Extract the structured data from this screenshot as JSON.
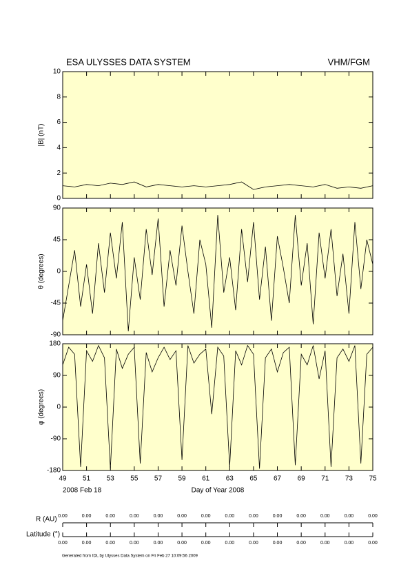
{
  "header": {
    "title": "ESA ULYSSES DATA SYSTEM",
    "instrument": "VHM/FGM"
  },
  "chart_data": [
    {
      "type": "line",
      "ylabel": "|B| (nT)",
      "color": "#000000",
      "background": "#ffffcc",
      "x": [
        49,
        50,
        51,
        52,
        53,
        54,
        55,
        56,
        57,
        58,
        59,
        60,
        61,
        62,
        63,
        64,
        65,
        66,
        67,
        68,
        69,
        70,
        71,
        72,
        73,
        74,
        75
      ],
      "values": [
        1.0,
        0.9,
        1.1,
        1.0,
        1.2,
        1.1,
        1.3,
        0.9,
        1.1,
        1.0,
        0.9,
        1.0,
        0.9,
        1.0,
        1.1,
        1.3,
        0.7,
        0.9,
        1.0,
        1.1,
        1.0,
        0.9,
        1.1,
        0.8,
        0.9,
        0.8,
        1.0
      ],
      "xlim": [
        49,
        75
      ],
      "ylim": [
        0,
        10
      ],
      "yticks": [
        0,
        2,
        4,
        6,
        8,
        10
      ]
    },
    {
      "type": "line",
      "ylabel": "θ (degrees)",
      "color": "#000000",
      "background": "#ffffcc",
      "x": [
        49,
        49.5,
        50,
        50.5,
        51,
        51.5,
        52,
        52.5,
        53,
        53.5,
        54,
        54.5,
        55,
        55.5,
        56,
        56.5,
        57,
        57.5,
        58,
        58.5,
        59,
        59.5,
        60,
        60.5,
        61,
        61.5,
        62,
        62.5,
        63,
        63.5,
        64,
        64.5,
        65,
        65.5,
        66,
        66.5,
        67,
        67.5,
        68,
        68.5,
        69,
        69.5,
        70,
        70.5,
        71,
        71.5,
        72,
        72.5,
        73,
        73.5,
        74,
        74.5,
        75
      ],
      "values": [
        -70,
        -20,
        30,
        -50,
        10,
        -60,
        40,
        -30,
        55,
        -10,
        70,
        -85,
        20,
        -40,
        60,
        -5,
        75,
        -50,
        30,
        -20,
        65,
        0,
        -60,
        45,
        10,
        -80,
        80,
        -30,
        20,
        -55,
        60,
        -15,
        70,
        -40,
        35,
        -70,
        50,
        5,
        -45,
        80,
        -20,
        40,
        -75,
        55,
        -10,
        60,
        -35,
        25,
        -60,
        70,
        -25,
        45,
        10
      ],
      "xlim": [
        49,
        75
      ],
      "ylim": [
        -90,
        90
      ],
      "yticks": [
        -90,
        -45,
        0,
        45,
        90
      ]
    },
    {
      "type": "line",
      "ylabel": "φ (degrees)",
      "xlabel": "Day of Year 2008",
      "start_label": "2008 Feb 18",
      "color": "#000000",
      "background": "#ffffcc",
      "x": [
        49,
        49.5,
        50,
        50.5,
        51,
        51.5,
        52,
        52.5,
        53,
        53.5,
        54,
        54.5,
        55,
        55.5,
        56,
        56.5,
        57,
        57.5,
        58,
        58.5,
        59,
        59.5,
        60,
        60.5,
        61,
        61.5,
        62,
        62.5,
        63,
        63.5,
        64,
        64.5,
        65,
        65.5,
        66,
        66.5,
        67,
        67.5,
        68,
        68.5,
        69,
        69.5,
        70,
        70.5,
        71,
        71.5,
        72,
        72.5,
        73,
        73.5,
        74,
        74.5,
        75
      ],
      "values": [
        120,
        170,
        150,
        -170,
        160,
        130,
        175,
        140,
        -175,
        165,
        110,
        150,
        170,
        -160,
        155,
        100,
        140,
        170,
        135,
        160,
        -150,
        175,
        125,
        150,
        165,
        -20,
        170,
        145,
        -170,
        160,
        120,
        175,
        150,
        -175,
        140,
        165,
        100,
        155,
        170,
        -165,
        150,
        120,
        175,
        80,
        160,
        -170,
        140,
        165,
        130,
        175,
        -160,
        150,
        170
      ],
      "xlim": [
        49,
        75
      ],
      "ylim": [
        -180,
        180
      ],
      "yticks": [
        -180,
        -90,
        0,
        90,
        180
      ],
      "xticks": [
        49,
        51,
        53,
        55,
        57,
        59,
        61,
        63,
        65,
        67,
        69,
        71,
        73,
        75
      ]
    }
  ],
  "orbit": {
    "r_label": "R (AU)",
    "r_values": [
      "0.00",
      "0.00",
      "0.00",
      "0.00",
      "0.00",
      "0.00",
      "0.00",
      "0.00",
      "0.00",
      "0.00",
      "0.00",
      "0.00",
      "0.00",
      "0.00"
    ],
    "lat_label": "Latitude (°)",
    "lat_values": [
      "0.00",
      "0.00",
      "0.00",
      "0.00",
      "0.00",
      "0.00",
      "0.00",
      "0.00",
      "0.00",
      "0.00",
      "0.00",
      "0.00",
      "0.00",
      "0.00"
    ]
  },
  "footer": "Generated from IDL by Ulysses Data System on Fri Feb 27 10:09:56 2009"
}
